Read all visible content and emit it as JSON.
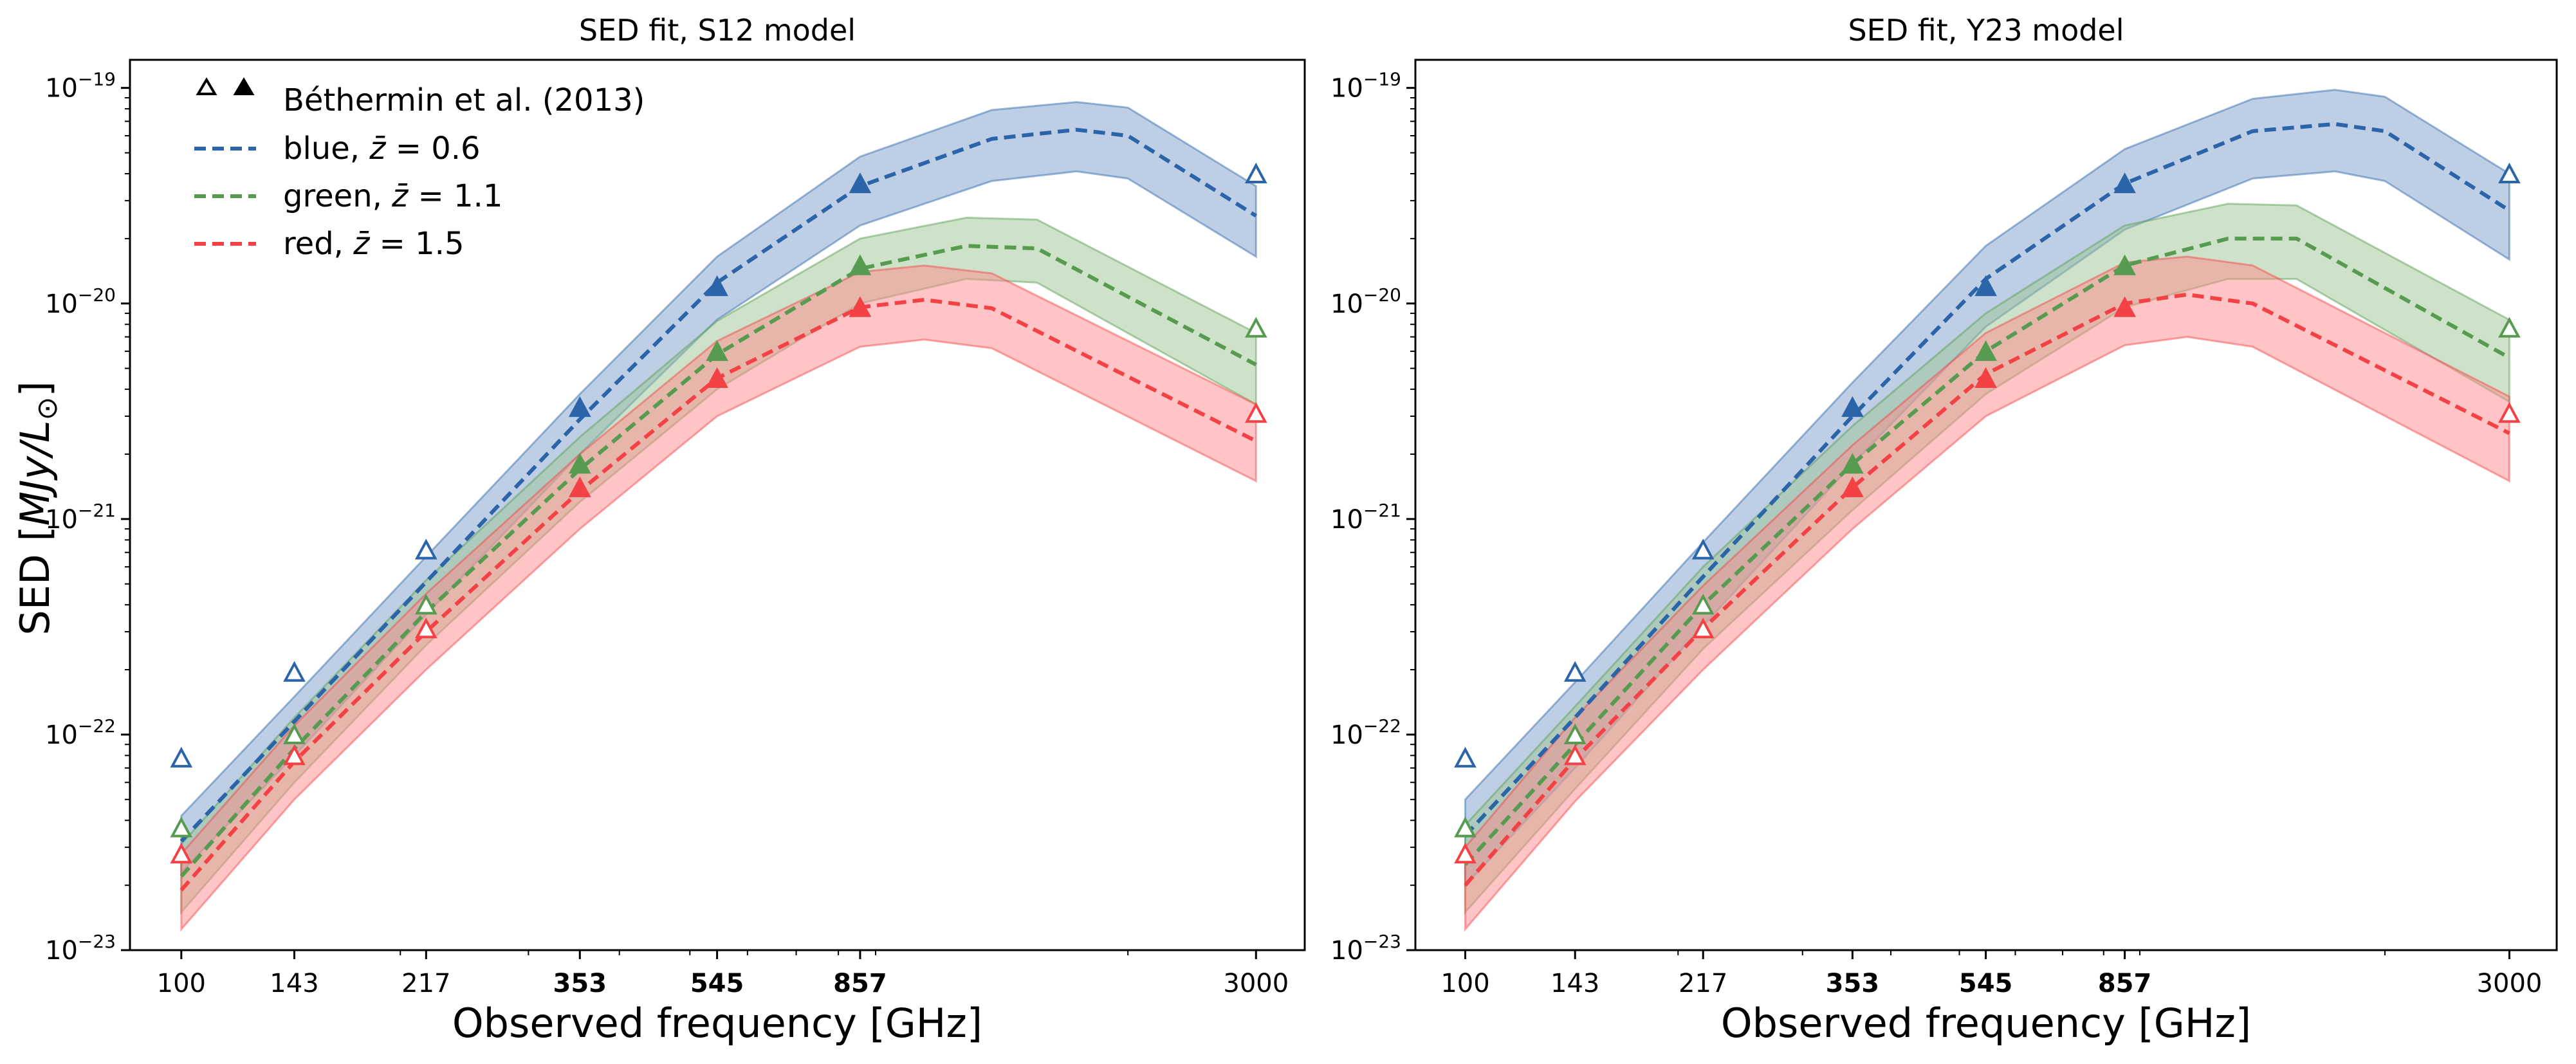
{
  "figure": {
    "ylabel_main": "SED [",
    "ylabel_unit": "MJy/L",
    "ylabel_sub": "⊙",
    "ylabel_close": "]"
  },
  "legend": {
    "entries": [
      {
        "key": "data",
        "label": "Béthermin et al. (2013)",
        "style": "triangles"
      },
      {
        "key": "blue",
        "label_prefix": "blue, ",
        "zbar": "z̄",
        "label_suffix": " = 0.6",
        "color": "#2b64a8"
      },
      {
        "key": "green",
        "label_prefix": "green, ",
        "zbar": "z̄",
        "label_suffix": " = 1.1",
        "color": "#579b50"
      },
      {
        "key": "red",
        "label_prefix": "red, ",
        "zbar": "z̄",
        "label_suffix": " = 1.5",
        "color": "#f34145"
      }
    ]
  },
  "colors": {
    "blue": "#2b64a8",
    "blue_band": "#7ea0cc",
    "green": "#579b50",
    "green_band": "#9cc593",
    "red": "#f34145",
    "red_band": "#ff8a8c"
  },
  "chart_data": [
    {
      "type": "line",
      "title": "SED fit, S12 model",
      "xlabel": "Observed frequency [GHz]",
      "ylabel": "SED [MJy/L⊙]",
      "xscale": "log",
      "yscale": "log",
      "xlim": [
        85,
        3500
      ],
      "ylim": [
        1e-23,
        1.35e-19
      ],
      "xticks": [
        100,
        143,
        217,
        353,
        545,
        857,
        3000
      ],
      "xtick_labels": [
        "100",
        "143",
        "217",
        "353",
        "545",
        "857",
        "3000"
      ],
      "xtick_bold": [
        false,
        false,
        false,
        true,
        true,
        true,
        false
      ],
      "yticks": [
        1e-23,
        1e-22,
        1e-21,
        1e-20,
        1e-19
      ],
      "ytick_base": "10",
      "ytick_exponents": [
        "−23",
        "−22",
        "−21",
        "−20",
        "−19"
      ],
      "series": [
        {
          "name": "blue",
          "color_key": "blue",
          "x": [
            100,
            143,
            217,
            353,
            545,
            857,
            1300,
            1700,
            2000,
            3000
          ],
          "y": [
            3.2e-23,
            1.15e-22,
            5.1e-22,
            2.9e-21,
            1.25e-20,
            3.5e-20,
            5.8e-20,
            6.4e-20,
            6e-20,
            2.55e-20
          ],
          "y_low": [
            2.3e-23,
            8e-23,
            3.6e-22,
            2e-21,
            8.4e-21,
            2.3e-20,
            3.7e-20,
            4.1e-20,
            3.8e-20,
            1.65e-20
          ],
          "y_high": [
            4.2e-23,
            1.5e-22,
            6.7e-22,
            3.8e-21,
            1.65e-20,
            4.8e-20,
            7.9e-20,
            8.6e-20,
            8.1e-20,
            3.5e-20
          ],
          "points_x": [
            100,
            143,
            217,
            353,
            545,
            857,
            3000
          ],
          "points_y": [
            7.8e-23,
            1.95e-22,
            7.2e-22,
            3.3e-21,
            1.2e-20,
            3.6e-20,
            4e-20
          ],
          "points_filled": [
            false,
            false,
            false,
            true,
            true,
            true,
            false
          ]
        },
        {
          "name": "green",
          "color_key": "green",
          "x": [
            100,
            143,
            217,
            353,
            545,
            857,
            1200,
            1500,
            3000
          ],
          "y": [
            2.2e-23,
            8.6e-23,
            3.7e-22,
            1.7e-21,
            5.8e-21,
            1.45e-20,
            1.85e-20,
            1.8e-20,
            5.2e-21
          ],
          "y_low": [
            1.5e-23,
            6e-23,
            2.6e-22,
            1.2e-21,
            4e-21,
            1e-20,
            1.3e-20,
            1.25e-20,
            3.4e-21
          ],
          "y_high": [
            3.1e-23,
            1.2e-22,
            5.2e-22,
            2.4e-21,
            8.3e-21,
            2e-20,
            2.5e-20,
            2.45e-20,
            7.3e-21
          ],
          "points_x": [
            100,
            143,
            217,
            353,
            545,
            857,
            3000
          ],
          "points_y": [
            3.7e-23,
            1e-22,
            4e-22,
            1.8e-21,
            6e-21,
            1.5e-20,
            7.7e-21
          ],
          "points_filled": [
            false,
            false,
            false,
            true,
            true,
            true,
            false
          ]
        },
        {
          "name": "red",
          "color_key": "red",
          "x": [
            100,
            143,
            217,
            353,
            545,
            857,
            1050,
            1300,
            3000
          ],
          "y": [
            1.9e-23,
            7.5e-23,
            3e-22,
            1.35e-21,
            4.5e-21,
            9.6e-21,
            1.04e-20,
            9.5e-21,
            2.3e-21
          ],
          "y_low": [
            1.25e-23,
            5e-23,
            2e-22,
            9e-22,
            3e-21,
            6.3e-21,
            6.8e-21,
            6.2e-21,
            1.5e-21
          ],
          "y_high": [
            2.8e-23,
            1.1e-22,
            4.5e-22,
            2e-21,
            6.7e-21,
            1.4e-20,
            1.5e-20,
            1.38e-20,
            3.4e-21
          ],
          "points_x": [
            100,
            143,
            217,
            353,
            545,
            857,
            3000
          ],
          "points_y": [
            2.8e-23,
            8e-23,
            3.1e-22,
            1.4e-21,
            4.5e-21,
            9.6e-21,
            3.1e-21
          ],
          "points_filled": [
            false,
            false,
            false,
            true,
            true,
            true,
            false
          ]
        }
      ]
    },
    {
      "type": "line",
      "title": "SED fit, Y23 model",
      "xlabel": "Observed frequency [GHz]",
      "ylabel": "",
      "xscale": "log",
      "yscale": "log",
      "xlim": [
        85,
        3500
      ],
      "ylim": [
        1e-23,
        1.35e-19
      ],
      "xticks": [
        100,
        143,
        217,
        353,
        545,
        857,
        3000
      ],
      "xtick_labels": [
        "100",
        "143",
        "217",
        "353",
        "545",
        "857",
        "3000"
      ],
      "xtick_bold": [
        false,
        false,
        false,
        true,
        true,
        true,
        false
      ],
      "yticks": [
        1e-23,
        1e-22,
        1e-21,
        1e-20,
        1e-19
      ],
      "ytick_base": "10",
      "ytick_exponents": [
        "−23",
        "−22",
        "−21",
        "−20",
        "−19"
      ],
      "series": [
        {
          "name": "blue",
          "color_key": "blue",
          "x": [
            100,
            143,
            217,
            353,
            545,
            857,
            1300,
            1700,
            2000,
            3000
          ],
          "y": [
            3.4e-23,
            1.2e-22,
            5.4e-22,
            3e-21,
            1.3e-20,
            3.6e-20,
            6.3e-20,
            6.8e-20,
            6.3e-20,
            2.7e-20
          ],
          "y_low": [
            2e-23,
            7e-23,
            3.2e-22,
            1.8e-21,
            7.8e-21,
            2.2e-20,
            3.8e-20,
            4.1e-20,
            3.7e-20,
            1.6e-20
          ],
          "y_high": [
            5e-23,
            1.75e-22,
            7.8e-22,
            4.3e-21,
            1.85e-20,
            5.2e-20,
            8.9e-20,
            9.8e-20,
            9.1e-20,
            4e-20
          ],
          "points_x": [
            100,
            143,
            217,
            353,
            545,
            857,
            3000
          ],
          "points_y": [
            7.8e-23,
            1.95e-22,
            7.2e-22,
            3.3e-21,
            1.2e-20,
            3.6e-20,
            4e-20
          ],
          "points_filled": [
            false,
            false,
            false,
            true,
            true,
            true,
            false
          ]
        },
        {
          "name": "green",
          "color_key": "green",
          "x": [
            100,
            143,
            217,
            353,
            545,
            857,
            1200,
            1500,
            3000
          ],
          "y": [
            2.5e-23,
            9e-23,
            4e-22,
            1.8e-21,
            6e-21,
            1.5e-20,
            2e-20,
            2e-20,
            5.6e-21
          ],
          "y_low": [
            1.5e-23,
            5.6e-23,
            2.5e-22,
            1.1e-21,
            3.8e-21,
            9.6e-21,
            1.3e-20,
            1.3e-20,
            3.5e-21
          ],
          "y_high": [
            3.8e-23,
            1.35e-22,
            6e-22,
            2.7e-21,
            9e-21,
            2.3e-20,
            2.9e-20,
            2.85e-20,
            8.4e-21
          ],
          "points_x": [
            100,
            143,
            217,
            353,
            545,
            857,
            3000
          ],
          "points_y": [
            3.7e-23,
            1e-22,
            4e-22,
            1.8e-21,
            6e-21,
            1.5e-20,
            7.7e-21
          ],
          "points_filled": [
            false,
            false,
            false,
            true,
            true,
            true,
            false
          ]
        },
        {
          "name": "red",
          "color_key": "red",
          "x": [
            100,
            143,
            217,
            353,
            545,
            857,
            1050,
            1300,
            3000
          ],
          "y": [
            2e-23,
            7.7e-23,
            3.1e-22,
            1.4e-21,
            4.7e-21,
            1e-20,
            1.1e-20,
            1e-20,
            2.5e-21
          ],
          "y_low": [
            1.25e-23,
            4.9e-23,
            2e-22,
            9e-22,
            3e-21,
            6.4e-21,
            7e-21,
            6.3e-21,
            1.5e-21
          ],
          "y_high": [
            3e-23,
            1.2e-22,
            4.9e-22,
            2.2e-21,
            7.3e-21,
            1.55e-20,
            1.65e-20,
            1.5e-20,
            3.7e-21
          ],
          "points_x": [
            100,
            143,
            217,
            353,
            545,
            857,
            3000
          ],
          "points_y": [
            2.8e-23,
            8e-23,
            3.1e-22,
            1.4e-21,
            4.5e-21,
            9.6e-21,
            3.1e-21
          ],
          "points_filled": [
            false,
            false,
            false,
            true,
            true,
            true,
            false
          ]
        }
      ]
    }
  ]
}
